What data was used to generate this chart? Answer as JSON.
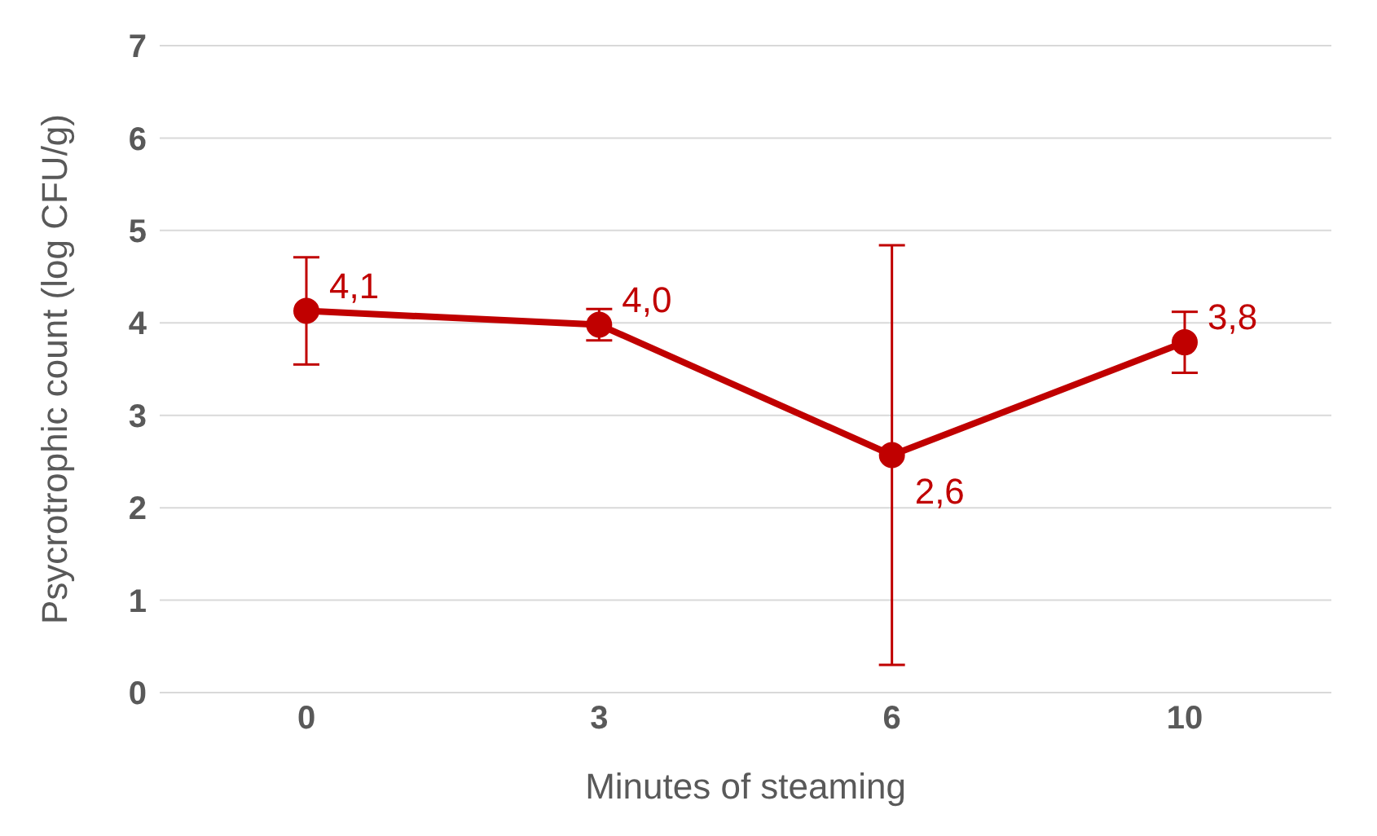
{
  "chart_data": {
    "type": "line",
    "xlabel": "Minutes of steaming",
    "ylabel": "Psycrotrophic count (log CFU/g)",
    "categories": [
      "0",
      "3",
      "6",
      "10"
    ],
    "series": [
      {
        "color": "#c00000",
        "values": [
          4.13,
          3.98,
          2.57,
          3.79
        ],
        "errors": [
          0.58,
          0.17,
          2.27,
          0.33
        ],
        "value_labels": [
          "4,1",
          "4,0",
          "2,6",
          "3,8"
        ]
      }
    ],
    "ylim": [
      0,
      7
    ],
    "yticks": [
      0,
      1,
      2,
      3,
      4,
      5,
      6,
      7
    ],
    "grid": "y",
    "marker": "circle",
    "line_style": "solid",
    "legend": false
  }
}
